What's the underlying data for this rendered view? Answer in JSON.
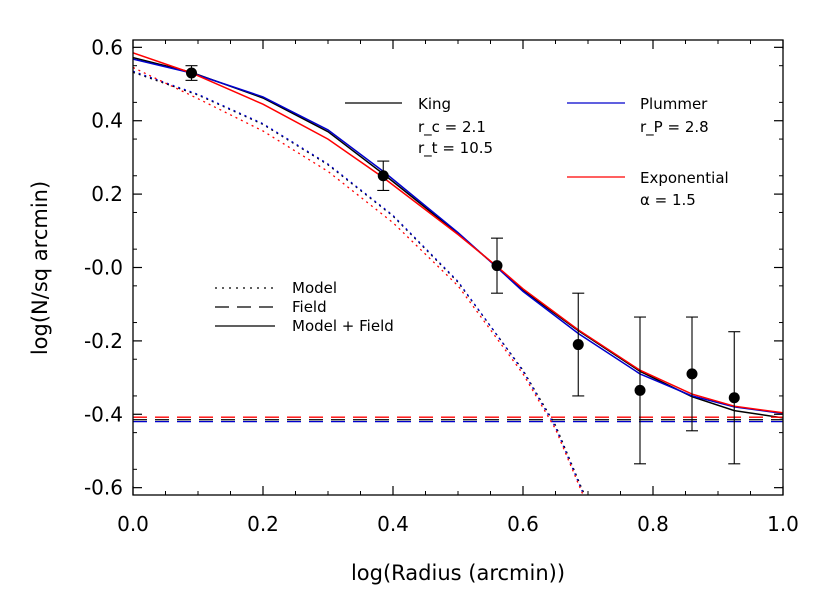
{
  "chart_data": {
    "type": "line",
    "xlabel": "log(Radius (arcmin))",
    "ylabel": "log(N/sq arcmin)",
    "xlim": [
      0.0,
      1.0
    ],
    "ylim": [
      -0.62,
      0.62
    ],
    "x_ticks": [
      "0.0",
      "0.2",
      "0.4",
      "0.6",
      "0.8",
      "1.0"
    ],
    "y_ticks": [
      "-0.6",
      "-0.4",
      "-0.2",
      "-0.0",
      "0.2",
      "0.4",
      "0.6"
    ],
    "grid": false,
    "colors": {
      "King": "#000000",
      "Plummer": "#0000cc",
      "Exponential": "#ff0000",
      "points": "#000000"
    },
    "observed": {
      "x": [
        0.09,
        0.385,
        0.56,
        0.685,
        0.78,
        0.86,
        0.925
      ],
      "y": [
        0.53,
        0.25,
        0.005,
        -0.21,
        -0.335,
        -0.29,
        -0.355
      ],
      "err": [
        0.02,
        0.04,
        0.075,
        0.14,
        0.2,
        0.155,
        0.18
      ]
    },
    "models": [
      {
        "name": "King",
        "field": -0.415,
        "model_field": [
          [
            0.0,
            0.572
          ],
          [
            0.09,
            0.532
          ],
          [
            0.2,
            0.462
          ],
          [
            0.3,
            0.37
          ],
          [
            0.385,
            0.255
          ],
          [
            0.5,
            0.092
          ],
          [
            0.56,
            0.002
          ],
          [
            0.6,
            -0.062
          ],
          [
            0.685,
            -0.172
          ],
          [
            0.78,
            -0.283
          ],
          [
            0.86,
            -0.352
          ],
          [
            0.925,
            -0.39
          ],
          [
            1.0,
            -0.41
          ]
        ],
        "model": [
          [
            0.0,
            0.532
          ],
          [
            0.1,
            0.47
          ],
          [
            0.2,
            0.39
          ],
          [
            0.3,
            0.28
          ],
          [
            0.4,
            0.14
          ],
          [
            0.5,
            -0.04
          ],
          [
            0.6,
            -0.28
          ],
          [
            0.65,
            -0.43
          ],
          [
            0.69,
            -0.6
          ],
          [
            0.7,
            -0.64
          ]
        ]
      },
      {
        "name": "Plummer",
        "field": -0.42,
        "model_field": [
          [
            0.0,
            0.568
          ],
          [
            0.09,
            0.53
          ],
          [
            0.2,
            0.465
          ],
          [
            0.3,
            0.375
          ],
          [
            0.385,
            0.262
          ],
          [
            0.5,
            0.095
          ],
          [
            0.56,
            0.0
          ],
          [
            0.6,
            -0.065
          ],
          [
            0.685,
            -0.18
          ],
          [
            0.78,
            -0.29
          ],
          [
            0.86,
            -0.35
          ],
          [
            0.925,
            -0.38
          ],
          [
            1.0,
            -0.398
          ]
        ],
        "model": [
          [
            0.0,
            0.535
          ],
          [
            0.1,
            0.472
          ],
          [
            0.2,
            0.392
          ],
          [
            0.3,
            0.282
          ],
          [
            0.4,
            0.142
          ],
          [
            0.5,
            -0.038
          ],
          [
            0.6,
            -0.282
          ],
          [
            0.65,
            -0.435
          ],
          [
            0.69,
            -0.605
          ],
          [
            0.7,
            -0.645
          ]
        ]
      },
      {
        "name": "Exponential",
        "field": -0.408,
        "model_field": [
          [
            0.0,
            0.585
          ],
          [
            0.09,
            0.53
          ],
          [
            0.2,
            0.445
          ],
          [
            0.3,
            0.35
          ],
          [
            0.385,
            0.245
          ],
          [
            0.5,
            0.09
          ],
          [
            0.56,
            0.003
          ],
          [
            0.6,
            -0.058
          ],
          [
            0.685,
            -0.17
          ],
          [
            0.78,
            -0.28
          ],
          [
            0.86,
            -0.345
          ],
          [
            0.925,
            -0.378
          ],
          [
            1.0,
            -0.396
          ]
        ],
        "model": [
          [
            0.0,
            0.545
          ],
          [
            0.1,
            0.46
          ],
          [
            0.2,
            0.372
          ],
          [
            0.3,
            0.262
          ],
          [
            0.4,
            0.122
          ],
          [
            0.5,
            -0.05
          ],
          [
            0.6,
            -0.29
          ],
          [
            0.65,
            -0.44
          ],
          [
            0.69,
            -0.61
          ],
          [
            0.7,
            -0.65
          ]
        ]
      }
    ],
    "legend_models": [
      {
        "name": "King",
        "params": [
          "r_c = 2.1",
          "r_t = 10.5"
        ]
      },
      {
        "name": "Plummer",
        "params": [
          "r_P = 2.8"
        ]
      },
      {
        "name": "Exponential",
        "params": [
          "α = 1.5"
        ]
      }
    ],
    "legend_styles": [
      {
        "style": "dotted",
        "label": "Model"
      },
      {
        "style": "dashed",
        "label": "Field"
      },
      {
        "style": "solid",
        "label": "Model + Field"
      }
    ]
  }
}
